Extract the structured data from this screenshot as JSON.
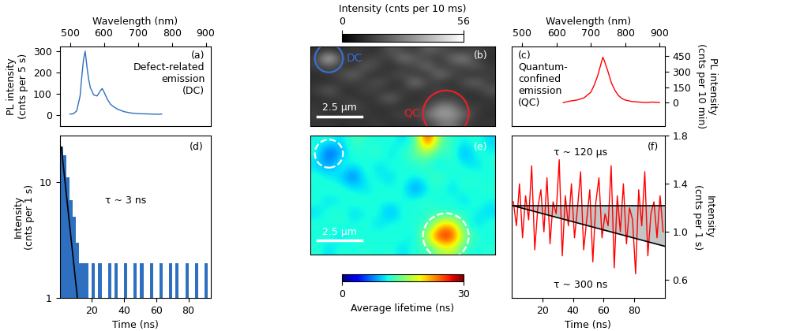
{
  "chart_data": [
    {
      "panel": "(a)",
      "type": "line",
      "x_label": "Wavelength (nm)",
      "y_label": "PL intensity\n(cnts per 5 s)",
      "annotation": "Defect-related\nemission\n(DC)",
      "color": "#2e6fbf",
      "x": [
        500,
        510,
        520,
        530,
        535,
        540,
        545,
        550,
        555,
        560,
        570,
        580,
        590,
        595,
        600,
        610,
        620,
        630,
        640,
        650,
        660,
        680,
        700,
        720,
        740,
        760,
        770
      ],
      "values": [
        5,
        6,
        20,
        90,
        180,
        260,
        300,
        230,
        170,
        130,
        95,
        90,
        115,
        125,
        110,
        75,
        50,
        38,
        28,
        22,
        16,
        10,
        7,
        6,
        5,
        4,
        5
      ],
      "xlim": [
        470,
        915
      ],
      "ylim": [
        -50,
        323
      ],
      "xticks": [
        500,
        600,
        700,
        800,
        900
      ],
      "yticks": [
        0,
        100,
        200,
        300
      ]
    },
    {
      "panel": "(b)",
      "type": "heatmap",
      "width": 10.5,
      "height": 7.0,
      "cells": [
        [
          10,
          12,
          9,
          14,
          11,
          10,
          20,
          15,
          12,
          22,
          18,
          14,
          12,
          16,
          11
        ],
        [
          12,
          50,
          14,
          10,
          13,
          16,
          12,
          28,
          20,
          14,
          12,
          24,
          30,
          13,
          10
        ],
        [
          14,
          18,
          12,
          11,
          22,
          14,
          10,
          12,
          15,
          26,
          12,
          14,
          16,
          20,
          12
        ],
        [
          9,
          12,
          16,
          24,
          12,
          10,
          14,
          18,
          12,
          11,
          28,
          16,
          12,
          10,
          14
        ],
        [
          11,
          10,
          13,
          14,
          12,
          20,
          12,
          10,
          30,
          14,
          12,
          10,
          18,
          24,
          12
        ],
        [
          13,
          22,
          11,
          10,
          16,
          12,
          11,
          14,
          12,
          12,
          16,
          12,
          11,
          12,
          20
        ],
        [
          10,
          12,
          14,
          12,
          10,
          14,
          24,
          12,
          10,
          13,
          12,
          14,
          12,
          10,
          12
        ],
        [
          12,
          11,
          10,
          18,
          12,
          11,
          12,
          10,
          14,
          12,
          30,
          28,
          12,
          14,
          11
        ],
        [
          14,
          10,
          12,
          11,
          13,
          10,
          12,
          16,
          12,
          26,
          36,
          34,
          24,
          12,
          10
        ],
        [
          11,
          13,
          10,
          12,
          11,
          14,
          10,
          12,
          11,
          14,
          24,
          28,
          14,
          11,
          12
        ]
      ],
      "colorbar": {
        "label": "Intensity (cnts per 10 ms)",
        "range": [
          0,
          56
        ],
        "ticks": [
          0,
          56
        ]
      },
      "regions": [
        {
          "label": "DC",
          "x": 1.05,
          "y": 1.05,
          "radius": 0.8,
          "color": "#3a6fd0",
          "line_style": "solid"
        },
        {
          "label": "QC",
          "x": 7.7,
          "y": 5.9,
          "radius": 1.3,
          "color": "#e8202a",
          "line_style": "solid"
        }
      ],
      "scale_bar": {
        "label": "2.5 µm",
        "length": 2.5
      }
    },
    {
      "panel": "(c)",
      "type": "line",
      "x_label": "Wavelength (nm)",
      "y_label": "PL intensity\n(cnts per 10 min)",
      "annotation": "Quantum-\nconfined\nemission\n(QC)",
      "color": "#ff0000",
      "x": [
        620,
        640,
        660,
        680,
        700,
        710,
        720,
        730,
        735,
        740,
        750,
        760,
        770,
        780,
        790,
        800,
        820,
        840,
        860,
        880,
        900
      ],
      "values": [
        0,
        15,
        25,
        45,
        100,
        170,
        260,
        380,
        440,
        400,
        300,
        190,
        120,
        70,
        40,
        25,
        10,
        5,
        0,
        5,
        0
      ],
      "xlim": [
        470,
        915
      ],
      "ylim": [
        -225,
        545
      ],
      "xticks": [
        500,
        600,
        700,
        800,
        900
      ],
      "yticks": [
        0,
        150,
        300,
        450
      ]
    },
    {
      "panel": "(d)",
      "type": "histogram",
      "x_label": "Time (ns)",
      "y_label": "Intensity\n(cnts per 1 s)",
      "color": "#2e6fbf",
      "bins": [
        0,
        2,
        4,
        6,
        8,
        10,
        12,
        14,
        16,
        18,
        20,
        22,
        24,
        26,
        28,
        30,
        32,
        34,
        36,
        38,
        40,
        42,
        44,
        46,
        48,
        50,
        52,
        54,
        56,
        58,
        60,
        62,
        64,
        66,
        68,
        70,
        72,
        74,
        76,
        78,
        80,
        82,
        84,
        86,
        88,
        90,
        92,
        94
      ],
      "counts": [
        20,
        17,
        11,
        7,
        5,
        3,
        2,
        2,
        2,
        1,
        2,
        1,
        2,
        1,
        1,
        2,
        1,
        2,
        1,
        1,
        2,
        1,
        1,
        2,
        1,
        2,
        1,
        1,
        2,
        1,
        1,
        2,
        1,
        1,
        2,
        1,
        2,
        1,
        1,
        2,
        1,
        1,
        2,
        1,
        1,
        2,
        1
      ],
      "log": "y",
      "xlim": [
        0,
        94
      ],
      "ylim": [
        1,
        25
      ],
      "xticks": [
        20,
        40,
        60,
        80
      ],
      "yticks": [
        1,
        10
      ],
      "fit": {
        "label": "τ ~ 3 ns",
        "x": [
          1,
          11
        ],
        "values": [
          20,
          1
        ]
      }
    },
    {
      "panel": "(e)",
      "type": "heatmap",
      "width": 10.5,
      "height": 7.0,
      "cells": [
        [
          11,
          12,
          10,
          13,
          12,
          11,
          12,
          10,
          12,
          28,
          14,
          12,
          11,
          12,
          10
        ],
        [
          12,
          5,
          9,
          12,
          11,
          13,
          10,
          12,
          14,
          16,
          12,
          13,
          8,
          12,
          11
        ],
        [
          10,
          8,
          12,
          11,
          12,
          10,
          12,
          11,
          12,
          12,
          10,
          12,
          11,
          10,
          12
        ],
        [
          12,
          11,
          10,
          6,
          12,
          11,
          10,
          12,
          11,
          12,
          13,
          11,
          12,
          12,
          11
        ],
        [
          11,
          12,
          12,
          11,
          10,
          12,
          11,
          12,
          7,
          11,
          12,
          10,
          12,
          11,
          12
        ],
        [
          12,
          10,
          11,
          12,
          12,
          11,
          12,
          11,
          12,
          12,
          11,
          12,
          10,
          12,
          11
        ],
        [
          10,
          12,
          12,
          10,
          11,
          12,
          8,
          12,
          11,
          12,
          12,
          11,
          12,
          11,
          10
        ],
        [
          12,
          11,
          12,
          11,
          12,
          10,
          12,
          11,
          12,
          12,
          20,
          22,
          12,
          10,
          12
        ],
        [
          11,
          12,
          10,
          12,
          11,
          12,
          11,
          12,
          10,
          18,
          28,
          27,
          16,
          12,
          11
        ],
        [
          12,
          10,
          12,
          11,
          12,
          11,
          12,
          10,
          12,
          12,
          16,
          18,
          12,
          11,
          12
        ]
      ],
      "colorbar": {
        "label": "Average lifetime (ns)",
        "range": [
          0,
          30
        ],
        "ticks": [
          0,
          30
        ]
      },
      "regions": [
        {
          "x": 1.05,
          "y": 1.05,
          "radius": 0.8,
          "color": "#ffffff",
          "line_style": "dashed"
        },
        {
          "x": 7.7,
          "y": 5.9,
          "radius": 1.3,
          "color": "#ffffff",
          "line_style": "dashed"
        }
      ],
      "scale_bar": {
        "label": "2.5 µm",
        "length": 2.5
      }
    },
    {
      "panel": "(f)",
      "type": "line",
      "x_label": "Time (ns)",
      "y_label": "Intensity\n(cnts per 1 s)",
      "color": "#ff0000",
      "x": [
        1,
        3,
        5,
        7,
        9,
        11,
        13,
        15,
        17,
        19,
        21,
        23,
        25,
        27,
        29,
        31,
        33,
        35,
        37,
        39,
        41,
        43,
        45,
        47,
        49,
        51,
        53,
        55,
        57,
        59,
        61,
        63,
        65,
        67,
        69,
        71,
        73,
        75,
        77,
        79,
        81,
        83,
        85,
        87,
        89,
        91,
        93,
        95,
        97,
        99
      ],
      "values": [
        1.25,
        1.05,
        1.4,
        0.95,
        1.3,
        1.1,
        1.55,
        0.85,
        1.2,
        1.35,
        1.0,
        1.45,
        0.9,
        1.25,
        1.15,
        1.6,
        0.8,
        1.3,
        1.05,
        1.4,
        0.95,
        1.2,
        1.5,
        0.85,
        1.1,
        1.35,
        0.75,
        1.25,
        1.45,
        0.95,
        1.15,
        1.05,
        1.55,
        0.7,
        1.3,
        1.0,
        1.4,
        0.9,
        1.2,
        1.1,
        0.65,
        1.35,
        1.05,
        1.5,
        0.8,
        1.15,
        1.25,
        0.95,
        1.3,
        1.0
      ],
      "xlim": [
        0,
        100
      ],
      "ylim": [
        0.45,
        1.8
      ],
      "xticks": [
        20,
        40,
        60,
        80
      ],
      "yticks": [
        0.6,
        1.0,
        1.4,
        1.8
      ],
      "fits": [
        {
          "label": "τ ~ 120 µs",
          "x": [
            0,
            100
          ],
          "values": [
            1.22,
            1.22
          ]
        },
        {
          "label": "τ ~ 300 ns",
          "x": [
            0,
            100
          ],
          "values": [
            1.22,
            0.88
          ]
        }
      ]
    }
  ]
}
